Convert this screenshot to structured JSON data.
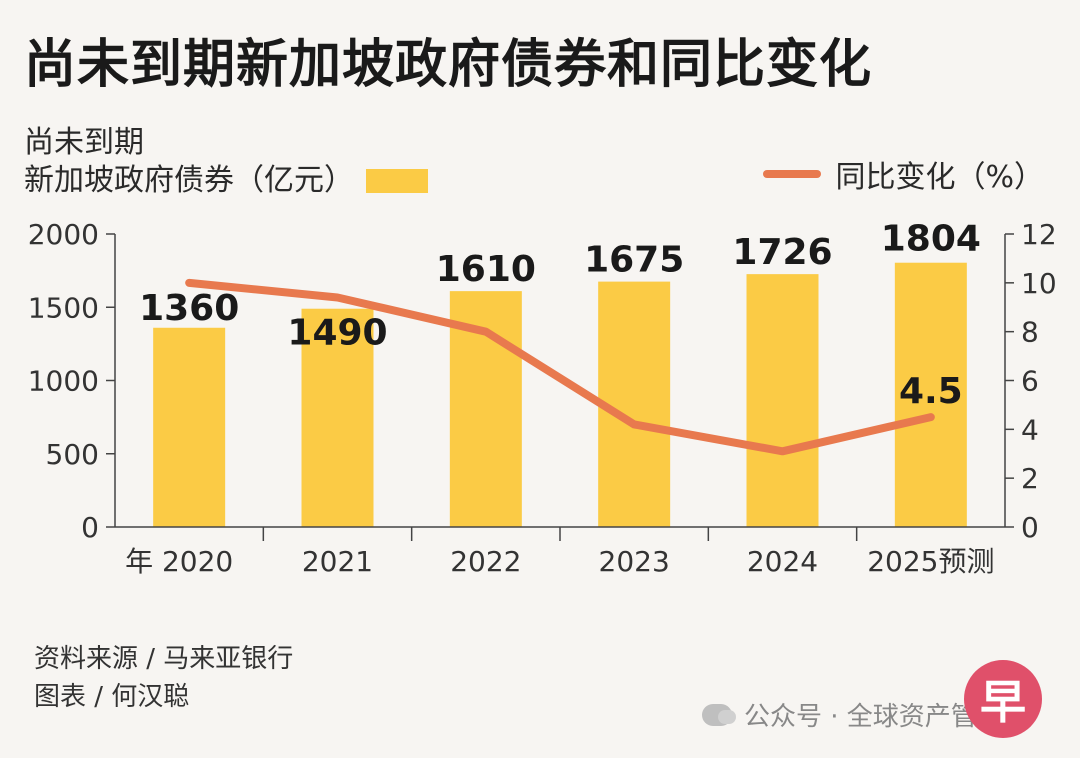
{
  "title": "尚未到期新加坡政府债券和同比变化",
  "legend": {
    "bar_line1": "尚未到期",
    "bar_line2": "新加坡政府债券（亿元）",
    "line_label": "同比变化（%）"
  },
  "source": {
    "line1": "资料来源 / 马来亚银行",
    "line2": "图表 / 何汉聪"
  },
  "watermark": "公众号 · 全球资产管理",
  "logo_text": "早",
  "colors": {
    "bar": "#fbcb45",
    "line": "#e8794e",
    "axis": "#444444",
    "logo": "#e0506a"
  },
  "chart_data": {
    "type": "bar",
    "categories": [
      "年 2020",
      "2021",
      "2022",
      "2023",
      "2024",
      "2025预测"
    ],
    "series": [
      {
        "name": "尚未到期新加坡政府债券（亿元）",
        "type": "bar",
        "axis": "left",
        "values": [
          1360,
          1490,
          1610,
          1675,
          1726,
          1804
        ],
        "labels": [
          "1360",
          "1490",
          "1610",
          "1675",
          "1726",
          "1804"
        ]
      },
      {
        "name": "同比变化（%）",
        "type": "line",
        "axis": "right",
        "values": [
          10,
          9.4,
          8,
          4.2,
          3.1,
          4.5
        ],
        "labels": [
          null,
          null,
          null,
          null,
          null,
          "4.5"
        ]
      }
    ],
    "left_axis": {
      "min": 0,
      "max": 2000,
      "ticks": [
        0,
        500,
        1000,
        1500,
        2000
      ]
    },
    "right_axis": {
      "min": 0,
      "max": 12,
      "ticks": [
        0,
        2,
        4,
        6,
        8,
        10,
        12
      ]
    }
  }
}
